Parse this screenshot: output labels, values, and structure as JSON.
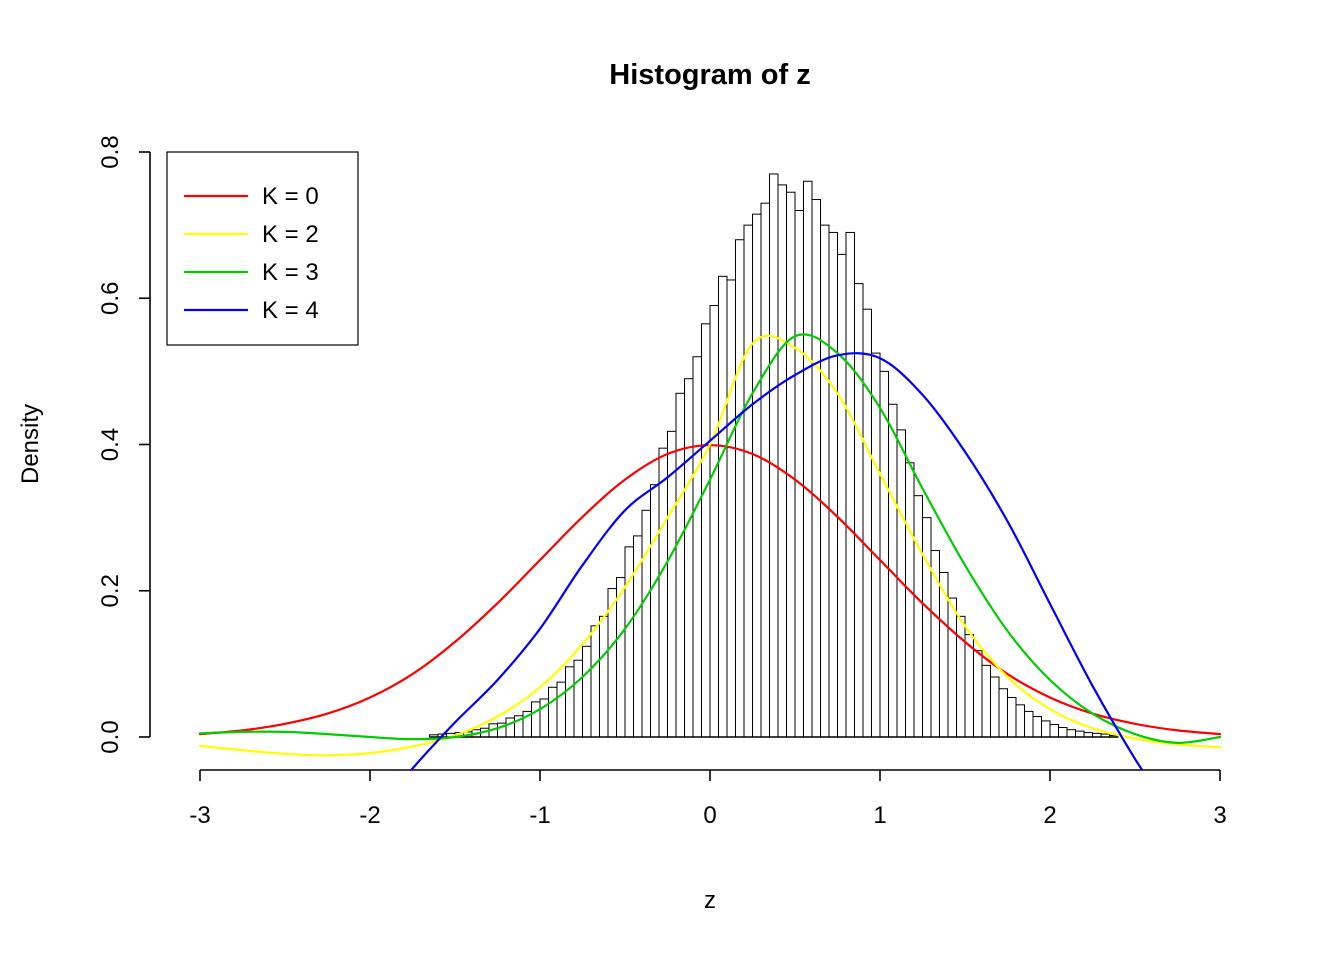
{
  "figure": {
    "background": "#ffffff"
  },
  "chart_data": {
    "type": "histogram",
    "title": "Histogram of z",
    "xlabel": "z",
    "ylabel": "Density",
    "grid": false,
    "xlim": [
      -3.3,
      3.3
    ],
    "ylim": [
      -0.047,
      0.8
    ],
    "x_ticks": {
      "values": [
        -3,
        -2,
        -1,
        0,
        1,
        2,
        3
      ],
      "labels": [
        "-3",
        "-2",
        "-1",
        "0",
        "1",
        "2",
        "3"
      ]
    },
    "y_ticks": {
      "values": [
        0,
        0.2,
        0.4,
        0.6,
        0.8
      ],
      "labels": [
        "0.0",
        "0.2",
        "0.4",
        "0.6",
        "0.8"
      ]
    },
    "histogram": {
      "bin_start": -1.65,
      "bin_width": 0.05,
      "bar_fill": "#ffffff",
      "bar_stroke": "#000000",
      "densities": [
        0.003,
        0.004,
        0.005,
        0.006,
        0.007,
        0.01,
        0.012,
        0.018,
        0.019,
        0.026,
        0.029,
        0.035,
        0.048,
        0.052,
        0.068,
        0.075,
        0.096,
        0.105,
        0.124,
        0.152,
        0.165,
        0.203,
        0.218,
        0.26,
        0.275,
        0.31,
        0.345,
        0.395,
        0.418,
        0.47,
        0.49,
        0.52,
        0.565,
        0.59,
        0.63,
        0.625,
        0.68,
        0.7,
        0.715,
        0.73,
        0.77,
        0.755,
        0.745,
        0.72,
        0.76,
        0.735,
        0.7,
        0.69,
        0.66,
        0.69,
        0.62,
        0.585,
        0.525,
        0.5,
        0.455,
        0.42,
        0.375,
        0.33,
        0.3,
        0.255,
        0.225,
        0.19,
        0.165,
        0.14,
        0.118,
        0.098,
        0.082,
        0.066,
        0.054,
        0.044,
        0.035,
        0.028,
        0.022,
        0.017,
        0.013,
        0.01,
        0.008,
        0.006,
        0.005,
        0.004,
        0.002
      ]
    },
    "series": [
      {
        "key": "k0",
        "name": "K = 0",
        "color": "#FF0000",
        "x": [
          -3,
          -2.75,
          -2.5,
          -2.25,
          -2,
          -1.75,
          -1.5,
          -1.25,
          -1,
          -0.75,
          -0.5,
          -0.25,
          0,
          0.25,
          0.5,
          0.75,
          1,
          1.25,
          1.5,
          1.75,
          2,
          2.25,
          2.5,
          2.75,
          3
        ],
        "y": [
          0.004,
          0.009,
          0.018,
          0.032,
          0.054,
          0.086,
          0.13,
          0.183,
          0.242,
          0.301,
          0.352,
          0.387,
          0.399,
          0.387,
          0.352,
          0.301,
          0.242,
          0.183,
          0.13,
          0.086,
          0.054,
          0.032,
          0.018,
          0.009,
          0.004
        ]
      },
      {
        "key": "k2",
        "name": "K = 2",
        "color": "#FFFF00",
        "x": [
          -3,
          -2.75,
          -2.5,
          -2.25,
          -2,
          -1.75,
          -1.5,
          -1.25,
          -1,
          -0.75,
          -0.5,
          -0.25,
          0,
          0.25,
          0.5,
          0.75,
          1,
          1.25,
          1.5,
          1.75,
          2,
          2.25,
          2.5,
          2.75,
          3
        ],
        "y": [
          -0.012,
          -0.018,
          -0.023,
          -0.025,
          -0.022,
          -0.013,
          0.002,
          0.028,
          0.068,
          0.127,
          0.205,
          0.3,
          0.4,
          0.538,
          0.532,
          0.47,
          0.36,
          0.25,
          0.152,
          0.082,
          0.038,
          0.012,
          -0.002,
          -0.01,
          -0.014
        ]
      },
      {
        "key": "k3",
        "name": "K = 3",
        "color": "#00CC00",
        "x": [
          -3,
          -2.75,
          -2.5,
          -2.25,
          -2,
          -1.75,
          -1.5,
          -1.25,
          -1,
          -0.75,
          -0.5,
          -0.25,
          0,
          0.25,
          0.5,
          0.75,
          1,
          1.25,
          1.5,
          1.75,
          2,
          2.25,
          2.5,
          2.75,
          3
        ],
        "y": [
          0.005,
          0.007,
          0.007,
          0.004,
          0.0,
          -0.003,
          0.0,
          0.012,
          0.038,
          0.082,
          0.148,
          0.24,
          0.352,
          0.47,
          0.548,
          0.525,
          0.45,
          0.34,
          0.235,
          0.145,
          0.078,
          0.032,
          0.004,
          -0.008,
          0.0
        ]
      },
      {
        "key": "k4",
        "name": "K = 4",
        "color": "#0000FF",
        "x": [
          -1.85,
          -1.7,
          -1.5,
          -1.25,
          -1,
          -0.75,
          -0.5,
          -0.25,
          0,
          0.25,
          0.5,
          0.75,
          1,
          1.25,
          1.5,
          1.75,
          2,
          2.25,
          2.5,
          2.7,
          2.85
        ],
        "y": [
          -0.07,
          -0.03,
          0.02,
          0.078,
          0.148,
          0.235,
          0.31,
          0.355,
          0.405,
          0.455,
          0.495,
          0.522,
          0.518,
          0.468,
          0.39,
          0.295,
          0.182,
          0.07,
          -0.03,
          -0.1,
          -0.18
        ]
      }
    ],
    "legend": {
      "position": "top-left",
      "entries": [
        {
          "key": "k0",
          "label": "K = 0",
          "color": "#FF0000"
        },
        {
          "key": "k2",
          "label": "K = 2",
          "color": "#FFFF00"
        },
        {
          "key": "k3",
          "label": "K = 3",
          "color": "#00CC00"
        },
        {
          "key": "k4",
          "label": "K = 4",
          "color": "#0000FF"
        }
      ]
    }
  }
}
